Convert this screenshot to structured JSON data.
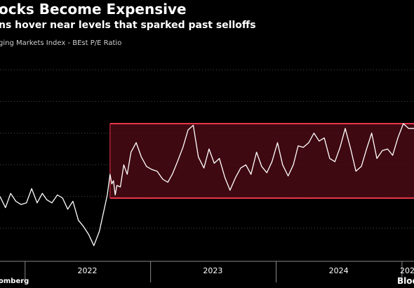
{
  "title": "ocks Become Expensive",
  "subtitle": "ns hover near levels that sparked past selloffs",
  "series_label": "ging Markets Index - BEst P/E Ratio",
  "source_left": "omberg",
  "source_right": "Bloo",
  "colors": {
    "background": "#000000",
    "line": "#ffffff",
    "band_fill": "#4a0a14",
    "band_border": "#e8364a",
    "gridline": "#4a4a4a",
    "tick": "#888888"
  },
  "chart_data": {
    "type": "line",
    "title": "ocks Become Expensive",
    "subtitle": "ns hover near levels that sparked past selloffs",
    "series_label": "ging Markets Index - BEst P/E Ratio",
    "x_tick_labels": [
      "2022",
      "2023",
      "2024",
      "202"
    ],
    "x_tick_dates": [
      "2022-07-01",
      "2023-07-01",
      "2024-07-01",
      "2025-07-01"
    ],
    "x_range": [
      "2021-10-20",
      "2025-02-05"
    ],
    "y_range": [
      0,
      13.3
    ],
    "grid": "horizontal dotted",
    "band": {
      "start": "2022-09-05",
      "end": "2025-02-05",
      "low": 3.9,
      "high": 8.6
    },
    "x": [
      "2021-10-20",
      "2021-11-05",
      "2021-11-20",
      "2021-12-05",
      "2021-12-20",
      "2022-01-05",
      "2022-01-20",
      "2022-02-05",
      "2022-02-20",
      "2022-03-05",
      "2022-03-20",
      "2022-04-05",
      "2022-04-20",
      "2022-05-05",
      "2022-05-20",
      "2022-06-05",
      "2022-06-20",
      "2022-07-05",
      "2022-07-20",
      "2022-08-05",
      "2022-08-20",
      "2022-08-28",
      "2022-09-05",
      "2022-09-10",
      "2022-09-15",
      "2022-09-20",
      "2022-09-25",
      "2022-10-05",
      "2022-10-15",
      "2022-10-25",
      "2022-11-05",
      "2022-11-20",
      "2022-12-05",
      "2022-12-20",
      "2023-01-05",
      "2023-01-20",
      "2023-02-05",
      "2023-02-20",
      "2023-03-05",
      "2023-03-20",
      "2023-04-05",
      "2023-04-20",
      "2023-05-05",
      "2023-05-20",
      "2023-06-05",
      "2023-06-20",
      "2023-07-05",
      "2023-07-20",
      "2023-08-05",
      "2023-08-20",
      "2023-09-05",
      "2023-09-20",
      "2023-10-05",
      "2023-10-20",
      "2023-11-05",
      "2023-11-20",
      "2023-12-05",
      "2023-12-20",
      "2024-01-05",
      "2024-01-20",
      "2024-02-05",
      "2024-02-20",
      "2024-03-05",
      "2024-03-20",
      "2024-04-05",
      "2024-04-20",
      "2024-05-05",
      "2024-05-20",
      "2024-06-05",
      "2024-06-20",
      "2024-07-05",
      "2024-07-20",
      "2024-08-05",
      "2024-08-20",
      "2024-09-05",
      "2024-09-20",
      "2024-10-05",
      "2024-10-20",
      "2024-11-05",
      "2024-11-20",
      "2024-12-05",
      "2024-12-20",
      "2025-01-05",
      "2025-01-20",
      "2025-02-05"
    ],
    "y": [
      4.0,
      3.3,
      4.2,
      3.7,
      3.5,
      3.6,
      4.5,
      3.6,
      4.2,
      3.8,
      3.6,
      4.1,
      3.9,
      3.2,
      3.7,
      2.5,
      2.1,
      1.6,
      0.9,
      1.8,
      3.3,
      4.1,
      5.4,
      4.8,
      5.0,
      4.1,
      4.7,
      4.6,
      6.0,
      5.4,
      6.8,
      7.4,
      6.5,
      5.9,
      5.7,
      5.6,
      5.1,
      4.9,
      5.4,
      6.2,
      7.1,
      8.2,
      8.5,
      6.5,
      5.8,
      7.0,
      6.1,
      6.4,
      5.2,
      4.4,
      5.2,
      5.8,
      6.0,
      5.4,
      6.8,
      5.9,
      5.5,
      6.2,
      7.4,
      6.0,
      5.3,
      6.0,
      7.2,
      7.1,
      7.4,
      8.0,
      7.5,
      7.7,
      6.4,
      6.2,
      7.1,
      8.3,
      7.0,
      5.6,
      5.9,
      7.0,
      8.0,
      6.4,
      6.9,
      7.0,
      6.6,
      7.7,
      8.6,
      8.3,
      8.3
    ]
  }
}
